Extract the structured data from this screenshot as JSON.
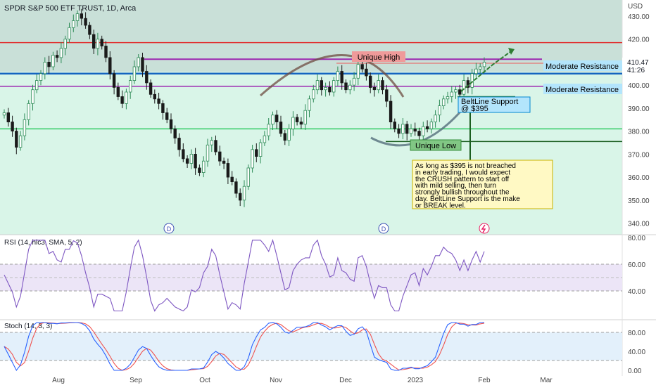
{
  "header": {
    "title": "SPDR S&P 500 ETF TRUST, 1D, Arca"
  },
  "price_axis": {
    "unit": "USD",
    "ticks": [
      "430.00",
      "420.00",
      "410.00",
      "400.00",
      "390.00",
      "380.00",
      "370.00",
      "360.00",
      "350.00",
      "340.00"
    ],
    "last_price": "410.47",
    "countdown": "41:26"
  },
  "time_axis": {
    "labels": [
      "Aug",
      "Sep",
      "Oct",
      "Nov",
      "Dec",
      "2023",
      "Feb",
      "Mar"
    ]
  },
  "annotations": {
    "unique_high": "Unique High",
    "unique_low": "Unique Low",
    "moderate_resistance_1": "Moderate Resistance",
    "moderate_resistance_2": "Moderate Resistance",
    "beltline_support_line1": "BeltLine Support",
    "beltline_support_line2": "@ $395",
    "note_lines": [
      "As long as $395 is not breached",
      "in early trading, I would expect",
      "the CRUSH pattern to start off",
      "with mild selling, then turn",
      "strongly bullish throughout the",
      "day. BeltLine Support is the make",
      "or BREAK level."
    ],
    "dividend_markers": [
      "D",
      "D"
    ]
  },
  "rsi": {
    "title": "RSI (14, hlc3, SMA, 5, 2)",
    "ticks": [
      "80.00",
      "60.00",
      "40.00"
    ]
  },
  "stoch": {
    "title": "Stoch (14, 3, 3)",
    "ticks": [
      "80.00",
      "40.00",
      "0.00"
    ]
  },
  "colors": {
    "up": "#2e8b57",
    "down": "#1a1a1a",
    "resistance_red": "#e03030",
    "resistance_purple": "#9c27b0",
    "support_blue": "#1565c0",
    "green_line": "#33cc66",
    "rsi_line": "#7e57c2",
    "stoch_k": "#2962ff",
    "stoch_d": "#ef5350"
  },
  "chart_data": {
    "type": "line",
    "title": "SPDR S&P 500 ETF TRUST, 1D, Arca",
    "ylim": [
      335,
      437
    ],
    "levels": {
      "resistance_red": 418.5,
      "unique_high": 409.5,
      "purple_upper": 411.3,
      "blue_support": 405.0,
      "purple_mid": 399.5,
      "green_support": 381.0,
      "unique_low": 375.5,
      "beltline_support": 395
    },
    "series": [
      {
        "values": [
          388,
          384,
          380,
          373,
          378,
          385,
          392,
          398,
          402,
          405,
          410,
          408,
          413,
          412,
          416,
          420,
          425,
          428,
          431,
          429,
          426,
          422,
          416,
          420,
          417,
          412,
          405,
          399,
          395,
          392,
          397,
          402,
          408,
          412,
          406,
          401,
          396,
          394,
          392,
          388,
          385,
          381,
          377,
          372,
          368,
          366,
          370,
          364,
          362,
          367,
          374,
          376,
          371,
          367,
          366,
          360,
          358,
          353,
          350,
          356,
          364,
          372,
          369,
          375,
          378,
          383,
          387,
          384,
          379,
          376,
          381,
          386,
          384,
          383,
          389,
          394,
          398,
          402,
          398,
          399,
          397,
          402,
          406,
          401,
          398,
          400,
          403,
          409,
          407,
          404,
          399,
          398,
          402,
          398,
          393,
          384,
          381,
          379,
          383,
          379,
          381,
          380,
          378,
          382,
          381,
          384,
          387,
          391,
          394,
          395,
          397,
          398,
          396,
          402,
          399,
          405,
          407,
          408,
          410
        ]
      }
    ]
  }
}
